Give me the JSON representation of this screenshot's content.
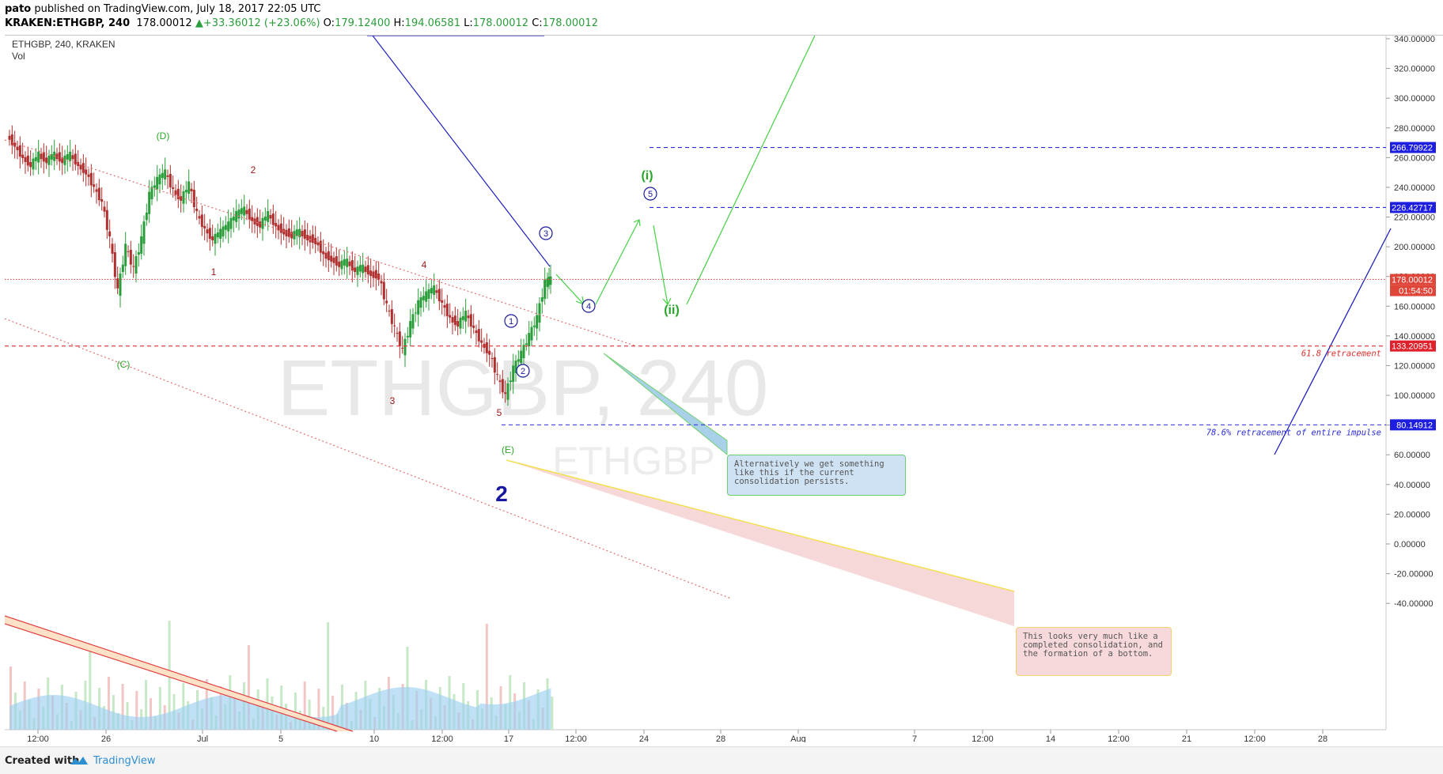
{
  "header": {
    "publisher": "pato",
    "published_text": "published on TradingView.com, July 18, 2017 22:05 UTC",
    "symbol": "KRAKEN:ETHGBP, 240",
    "last": "178.00012",
    "change": "+33.36012 (+23.06%)",
    "o_label": "O:",
    "o_value": "179.12400",
    "h_label": "H:",
    "h_value": "194.06581",
    "l_label": "L:",
    "l_value": "178.00012",
    "c_label": "C:",
    "c_value": "178.00012"
  },
  "legend": {
    "title": "ETHGBP, 240, KRAKEN",
    "volume": "Vol"
  },
  "watermark": {
    "big": "ETHGBP, 240",
    "small": "ETHGBP"
  },
  "price_axis": {
    "ticks": [
      "340.00000",
      "320.00000",
      "300.00000",
      "280.00000",
      "260.00000",
      "240.00000",
      "220.00000",
      "200.00000",
      "180.00000",
      "160.00000",
      "140.00000",
      "120.00000",
      "100.00000",
      "80.00000",
      "60.00000",
      "40.00000",
      "20.00000",
      "0.00000",
      "-20.00000",
      "-40.00000"
    ],
    "tick_values": [
      340,
      320,
      300,
      280,
      260,
      240,
      220,
      200,
      180,
      160,
      140,
      120,
      100,
      80,
      60,
      40,
      20,
      0,
      -20,
      -40
    ],
    "badges": [
      {
        "text": "266.79922",
        "value": 266.79922,
        "color": "#1e1ee0"
      },
      {
        "text": "226.42717",
        "value": 226.42717,
        "color": "#1e1ee0"
      },
      {
        "text": "178.00012",
        "value": 178.00012,
        "color": "#e0453a"
      },
      {
        "text": "01:54:50",
        "value": 170.5,
        "color": "#e0453a"
      },
      {
        "text": "133.20951",
        "value": 133.20951,
        "color": "#e0202a"
      },
      {
        "text": "80.14912",
        "value": 80.14912,
        "color": "#1e1ee0"
      }
    ]
  },
  "time_axis": {
    "ticks": [
      "12:00",
      "26",
      "Jul",
      "5",
      "10",
      "12:00",
      "17",
      "12:00",
      "24",
      "28",
      "Aug",
      "7",
      "12:00",
      "14",
      "12:00",
      "21",
      "12:00",
      "28"
    ]
  },
  "levels": [
    {
      "value": 266.79922,
      "color": "#2b2bd6",
      "label": ""
    },
    {
      "value": 226.42717,
      "color": "#2b2bd6",
      "label": ""
    },
    {
      "value": 178.00012,
      "color": "#e05050",
      "label": ""
    },
    {
      "value": 133.20951,
      "color": "#e03030",
      "label": "61.8 retracement"
    },
    {
      "value": 80.14912,
      "color": "#2b2bd6",
      "label": "78.6% retracement of entire impulse"
    }
  ],
  "wave_labels": {
    "D": "(D)",
    "C": "(C)",
    "E": "(E)",
    "r1": "1",
    "r2": "2",
    "r3": "3",
    "r4": "4",
    "r5": "5",
    "c1": "1",
    "c2": "2",
    "c3": "3",
    "c4": "4",
    "c5": "5",
    "gi": "(i)",
    "gii": "(ii)",
    "big2": "2"
  },
  "notes": {
    "blue": "Alternatively we get something like this if the current consolidation persists.",
    "pink": "This looks very much like a completed consolidation, and the formation of a bottom."
  },
  "footer": {
    "created": "Created with",
    "brand": "TradingView"
  },
  "colors": {
    "up": "#2a9e3a",
    "down": "#b03030",
    "wave_red": "#a01818",
    "wave_green": "#2aa52a",
    "wave_blue": "#1818a0"
  }
}
